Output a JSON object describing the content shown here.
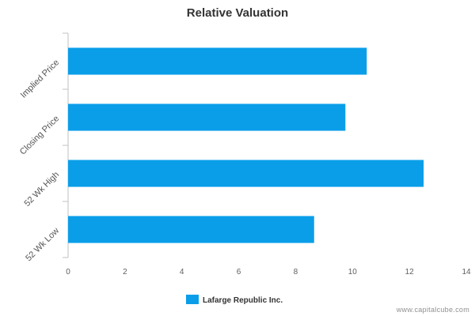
{
  "chart_data": {
    "type": "bar",
    "orientation": "horizontal",
    "title": "Relative Valuation",
    "categories": [
      "Implied Price",
      "Closing Price",
      "52 Wk High",
      "52 Wk Low"
    ],
    "series": [
      {
        "name": "Lafarge Republic Inc.",
        "values": [
          10.5,
          9.75,
          12.5,
          8.65
        ]
      }
    ],
    "xlim": [
      0,
      14
    ],
    "ticks": [
      0,
      2,
      4,
      6,
      8,
      10,
      12,
      14
    ],
    "xlabel": "",
    "ylabel": "",
    "grid": false,
    "legend": "bottom-center",
    "bar_color": "#0a9ee9"
  },
  "watermark": "www.capitalcube.com"
}
